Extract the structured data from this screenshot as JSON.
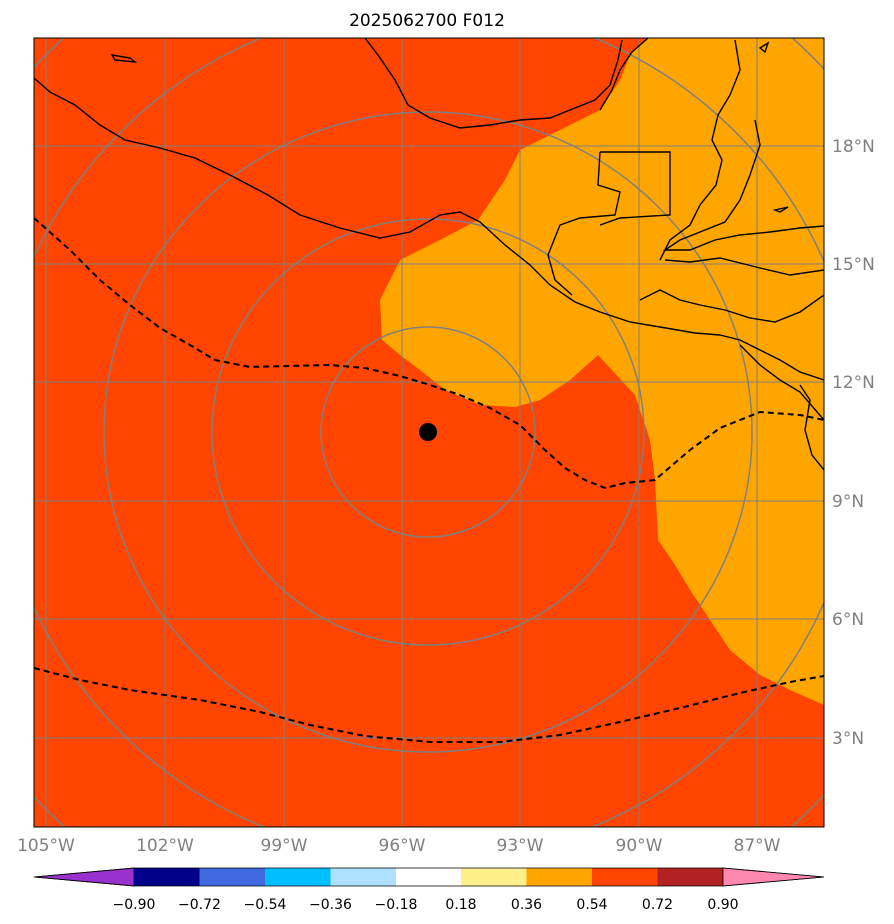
{
  "title": "2025062700 F012",
  "map": {
    "lon_ticks": [
      "105°W",
      "102°W",
      "99°W",
      "96°W",
      "93°W",
      "90°W",
      "87°W"
    ],
    "lat_ticks": [
      "18°N",
      "15°N",
      "12°N",
      "9°N",
      "6°N",
      "3°N"
    ],
    "lon_range": [
      -105.0,
      -85.0
    ],
    "lat_range": [
      1.0,
      21.0
    ],
    "grid": true,
    "colors": {
      "low_value_fill": "#ff4500",
      "high_value_fill": "#ffa500",
      "coastline": "#000000",
      "gridline": "#808080",
      "range_ring": "#808080",
      "contour_dashed": "#000000",
      "center_marker": "#000000"
    },
    "center_marker": {
      "lon": -95.3,
      "lat": 10.8
    },
    "range_rings": "concentric rings around center marker",
    "dashed_contours": 2
  },
  "colorbar": {
    "tick_labels": [
      "−0.90",
      "−0.72",
      "−0.54",
      "−0.36",
      "−0.18",
      "0.18",
      "0.36",
      "0.54",
      "0.72",
      "0.90"
    ],
    "colors": [
      "#9932cc",
      "#00008b",
      "#4169e1",
      "#00bfff",
      "#b0e0ff",
      "#ffffff",
      "#fff08c",
      "#ffa500",
      "#ff4500",
      "#b22222",
      "#ff88b0"
    ],
    "extend": "both"
  }
}
